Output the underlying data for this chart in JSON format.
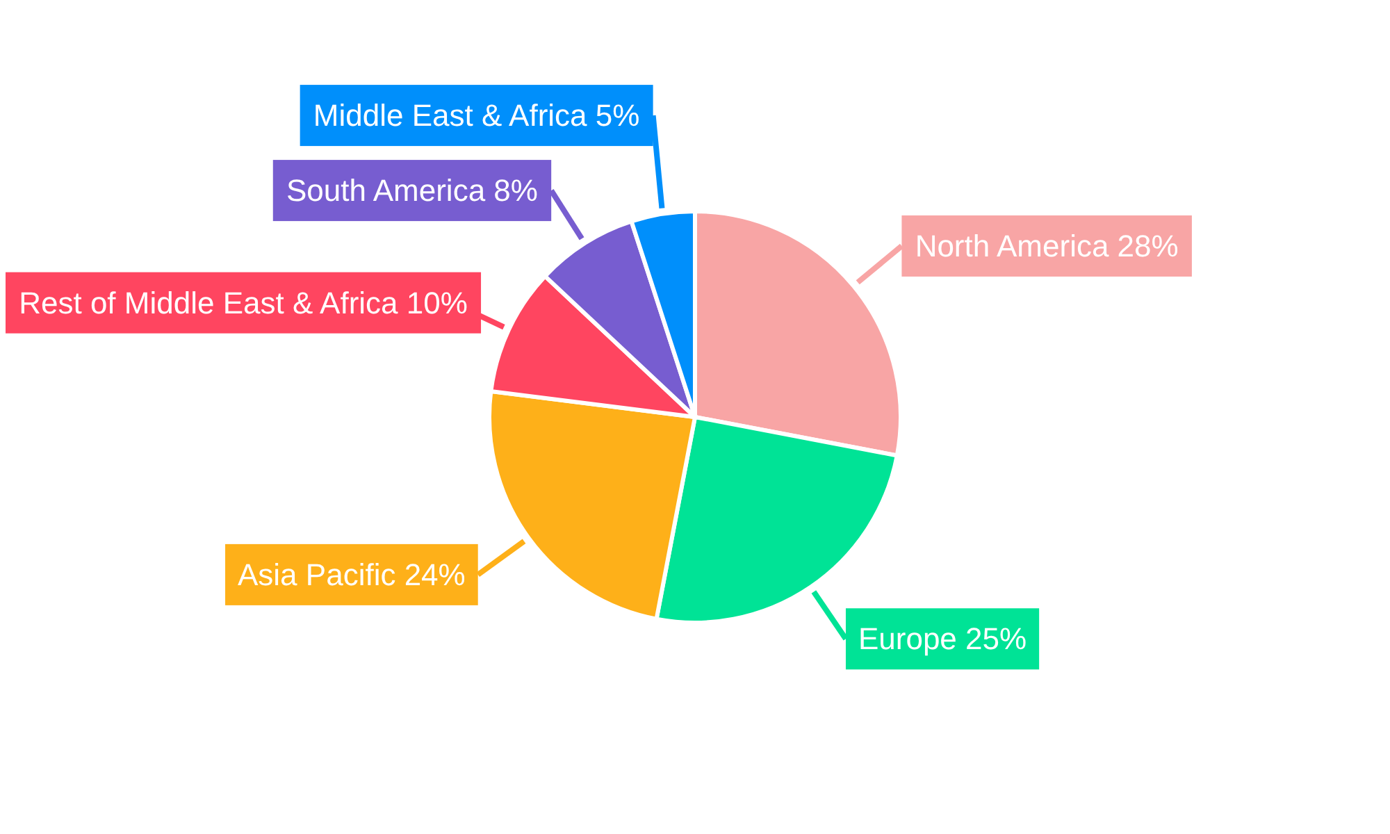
{
  "chart_data": {
    "type": "pie",
    "categories": [
      "North America",
      "Europe",
      "Asia Pacific",
      "Rest of Middle East & Africa",
      "South America",
      "Middle East & Africa"
    ],
    "values": [
      28,
      25,
      24,
      10,
      8,
      5
    ],
    "value_labels": [
      "28%",
      "25%",
      "24%",
      "10%",
      "8%",
      "5%"
    ],
    "colors": [
      "#f8a5a5",
      "#00e396",
      "#feb019",
      "#ff4560",
      "#775dd0",
      "#008ffb"
    ],
    "legend": false
  }
}
